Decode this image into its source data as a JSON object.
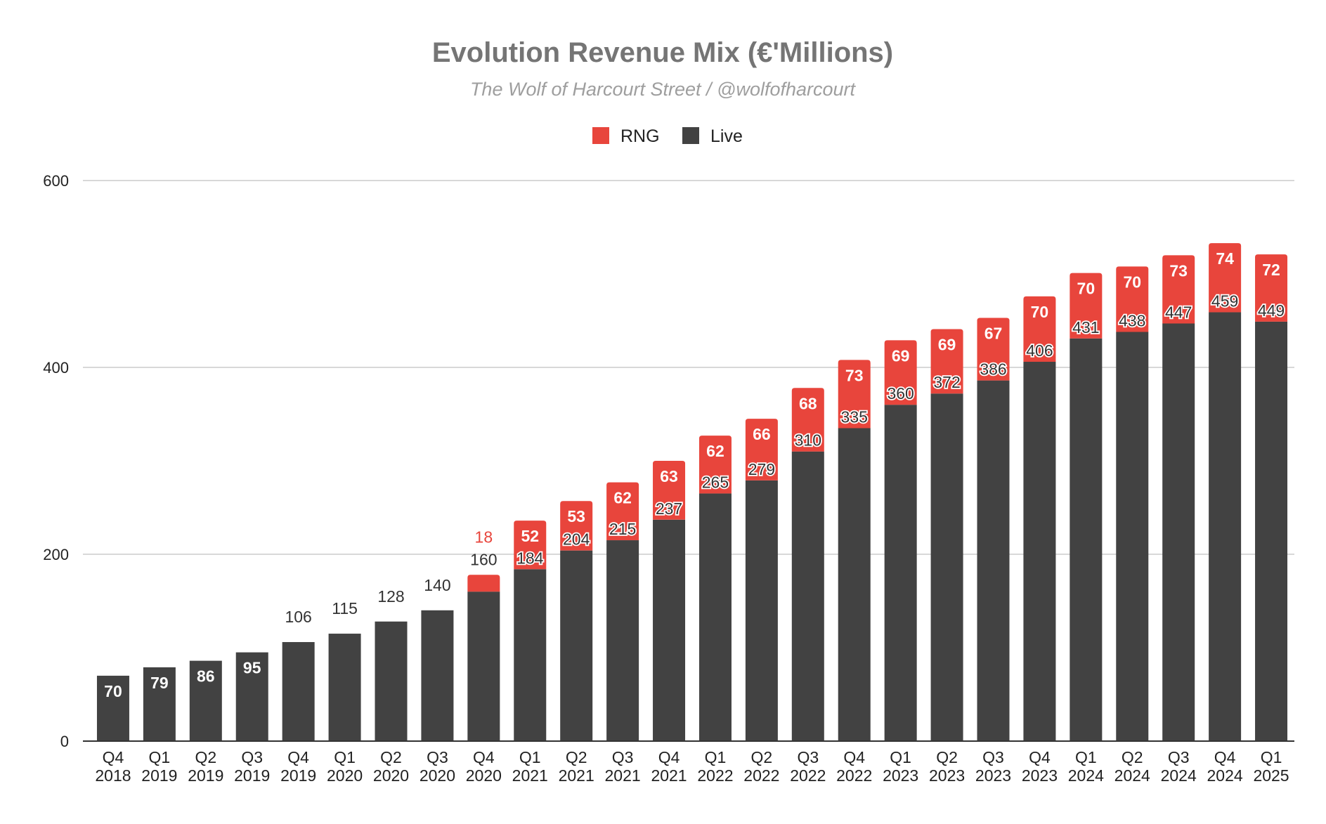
{
  "chart_data": {
    "type": "bar",
    "stacked": true,
    "title": "Evolution Revenue Mix (€'Millions)",
    "subtitle": "The Wolf of Harcourt Street / @wolfofharcourt",
    "xlabel": "",
    "ylabel": "",
    "ylim": [
      0,
      600
    ],
    "yticks": [
      0,
      200,
      400,
      600
    ],
    "grid": true,
    "legend_position": "top-center",
    "categories": [
      [
        "Q4",
        "2018"
      ],
      [
        "Q1",
        "2019"
      ],
      [
        "Q2",
        "2019"
      ],
      [
        "Q3",
        "2019"
      ],
      [
        "Q4",
        "2019"
      ],
      [
        "Q1",
        "2020"
      ],
      [
        "Q2",
        "2020"
      ],
      [
        "Q3",
        "2020"
      ],
      [
        "Q4",
        "2020"
      ],
      [
        "Q1",
        "2021"
      ],
      [
        "Q2",
        "2021"
      ],
      [
        "Q3",
        "2021"
      ],
      [
        "Q4",
        "2021"
      ],
      [
        "Q1",
        "2022"
      ],
      [
        "Q2",
        "2022"
      ],
      [
        "Q3",
        "2022"
      ],
      [
        "Q4",
        "2022"
      ],
      [
        "Q1",
        "2023"
      ],
      [
        "Q2",
        "2023"
      ],
      [
        "Q3",
        "2023"
      ],
      [
        "Q4",
        "2023"
      ],
      [
        "Q1",
        "2024"
      ],
      [
        "Q2",
        "2024"
      ],
      [
        "Q3",
        "2024"
      ],
      [
        "Q4",
        "2024"
      ],
      [
        "Q1",
        "2025"
      ]
    ],
    "legend_order": [
      "RNG",
      "Live"
    ],
    "series": [
      {
        "name": "Live",
        "color": "#424242",
        "values": [
          70,
          79,
          86,
          95,
          106,
          115,
          128,
          140,
          160,
          184,
          204,
          215,
          237,
          265,
          279,
          310,
          335,
          360,
          372,
          386,
          406,
          431,
          438,
          447,
          459,
          449
        ]
      },
      {
        "name": "RNG",
        "color": "#e8453c",
        "values": [
          null,
          null,
          null,
          null,
          null,
          null,
          null,
          null,
          18,
          52,
          53,
          62,
          63,
          62,
          66,
          68,
          73,
          69,
          69,
          67,
          70,
          70,
          70,
          73,
          74,
          72
        ]
      }
    ]
  }
}
